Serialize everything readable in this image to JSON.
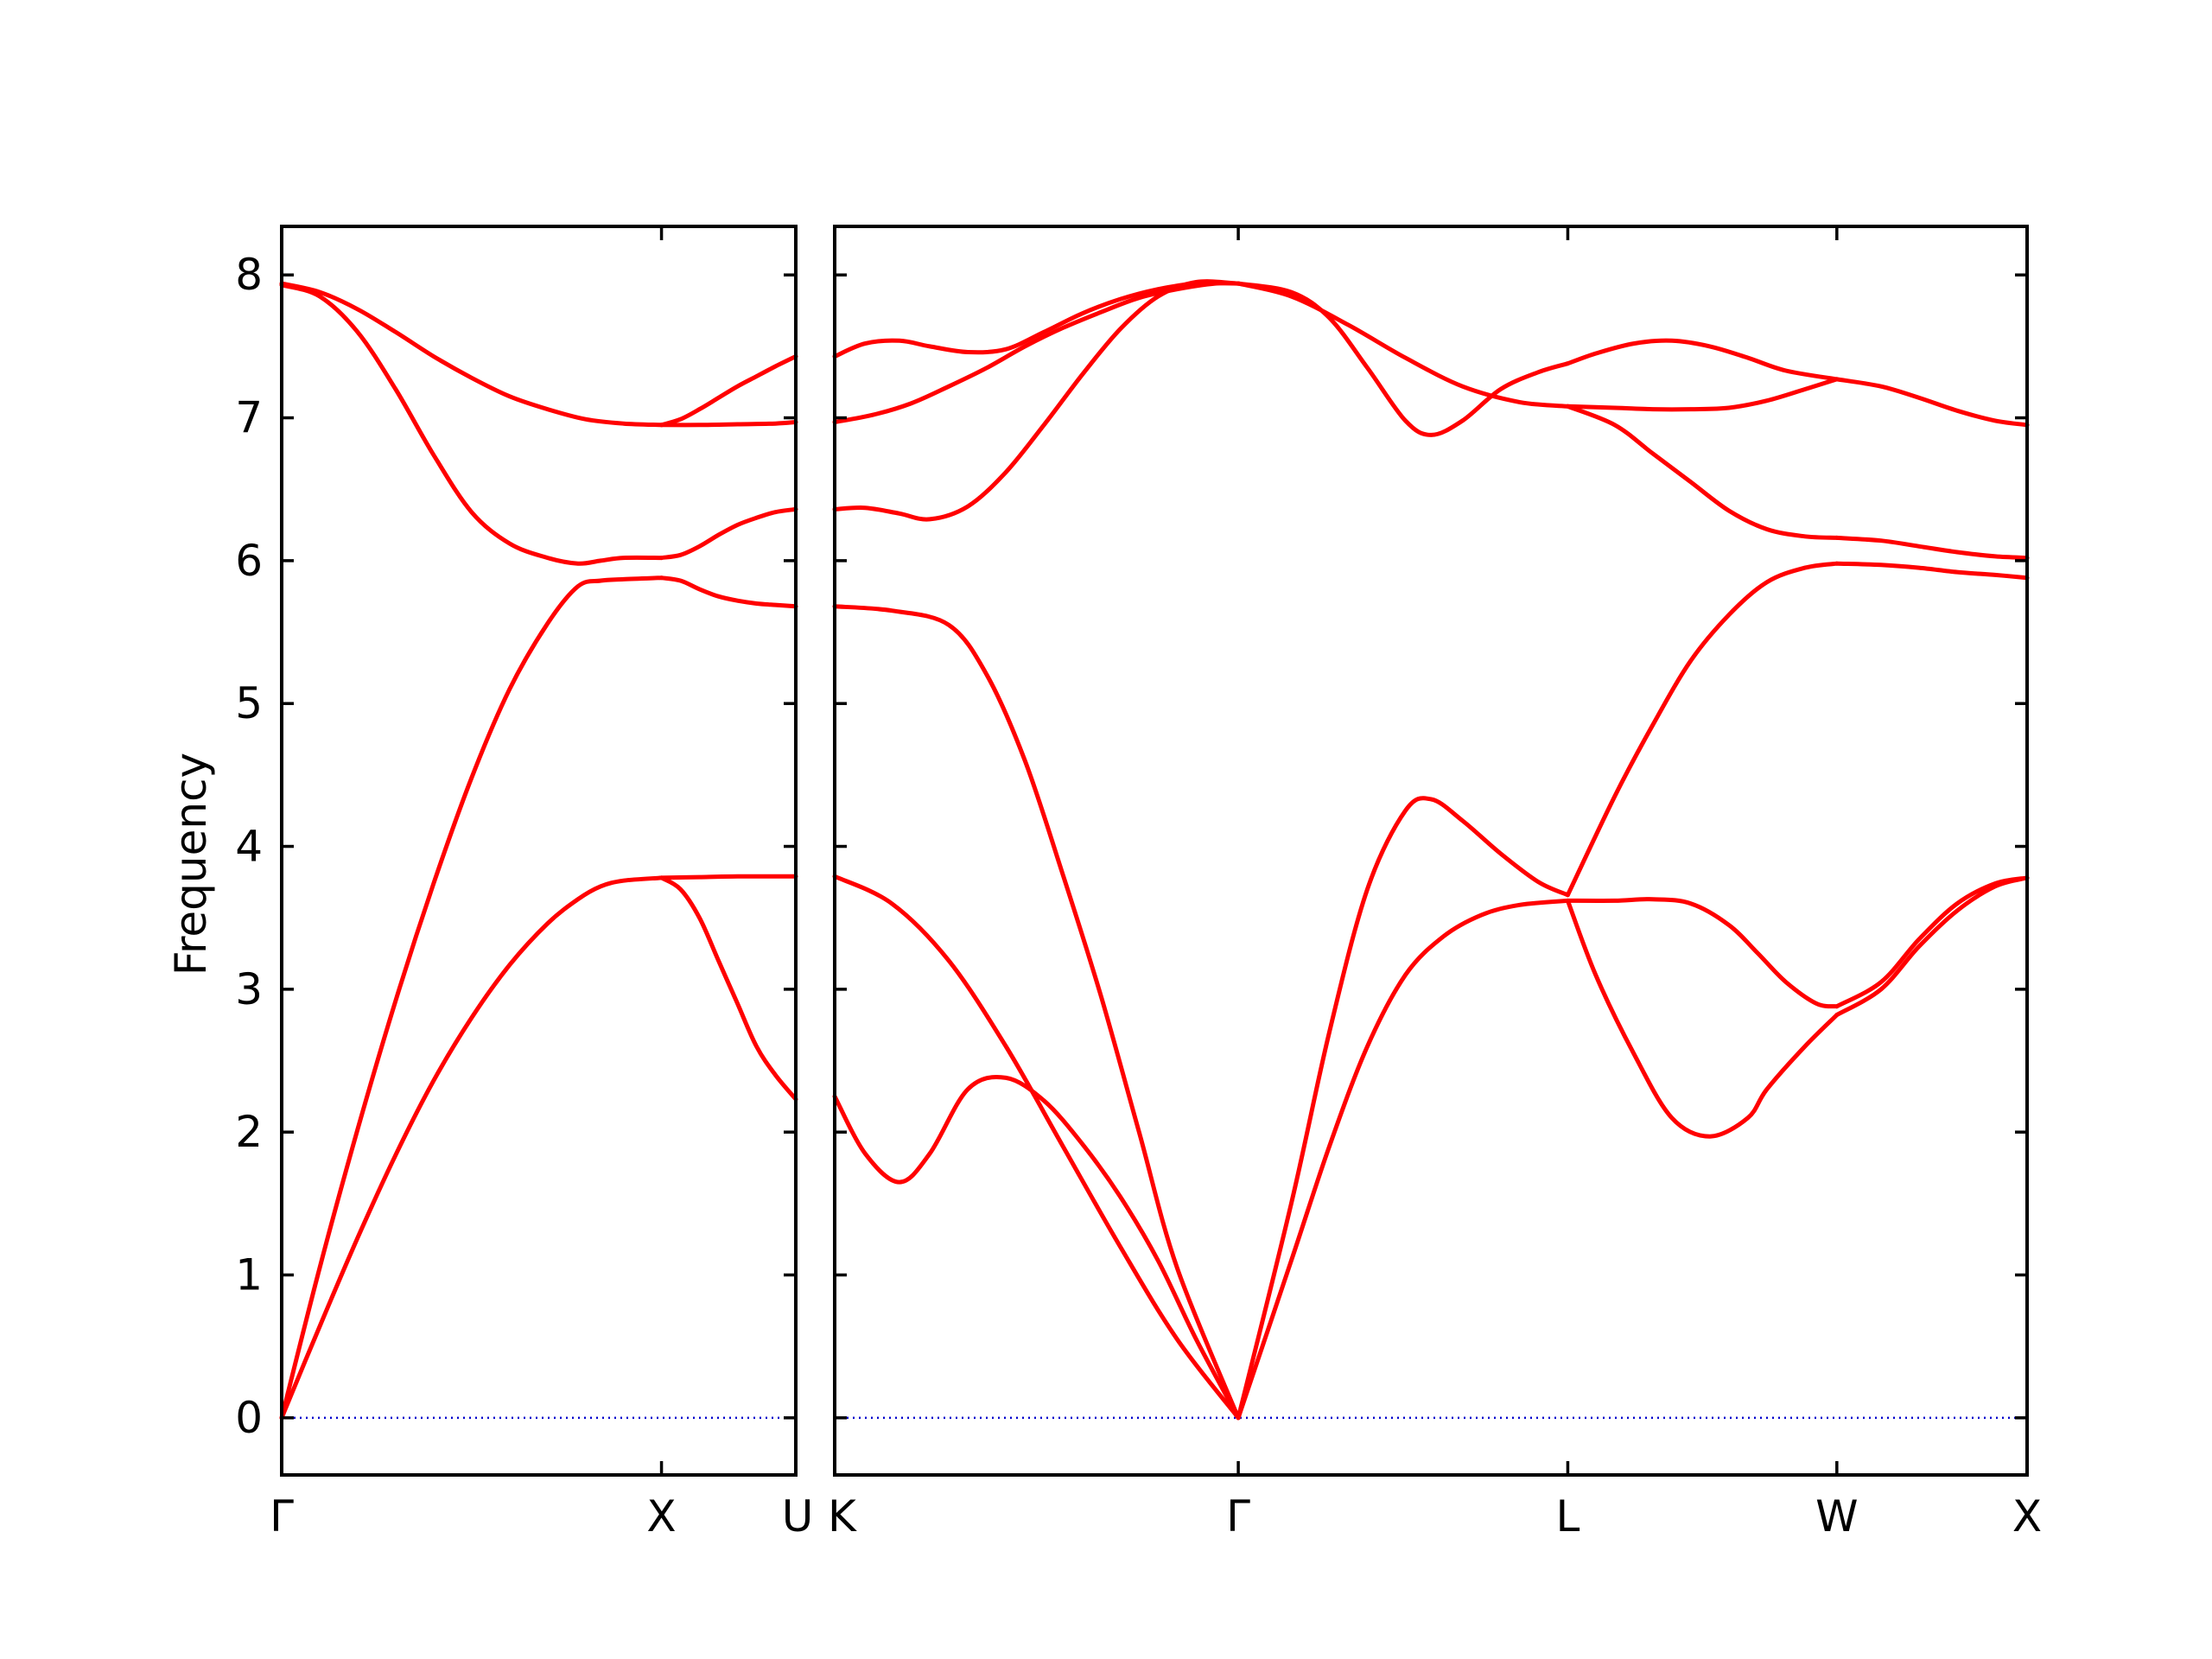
{
  "chart_data": {
    "type": "line",
    "title": "",
    "ylabel": "Frequency",
    "xlabel": "",
    "ylim": [
      -0.4,
      8.34
    ],
    "y_ticks": [
      0,
      1,
      2,
      3,
      4,
      5,
      6,
      7,
      8
    ],
    "grid": false,
    "legend": "none",
    "colors": {
      "bands": "#ff0000",
      "zero_line": "#0000cc",
      "axes": "#000000"
    },
    "panels": [
      {
        "x_ticks": [
          {
            "pos": 0.0,
            "label": "Γ"
          },
          {
            "pos": 1.0,
            "label": "X"
          },
          {
            "pos": 1.3536,
            "label": "U"
          }
        ],
        "xlim": [
          0,
          1.3536
        ],
        "series": [
          {
            "x": [
              0,
              0.1,
              0.2,
              0.3,
              0.4,
              0.5,
              0.6,
              0.7,
              0.78,
              0.84,
              0.9,
              1.0
            ],
            "values": [
              0,
              0.64,
              1.26,
              1.84,
              2.36,
              2.8,
              3.17,
              3.46,
              3.63,
              3.72,
              3.76,
              3.78
            ]
          },
          {
            "x": [
              0,
              0.1,
              0.2,
              0.3,
              0.4,
              0.5,
              0.6,
              0.7,
              0.78,
              0.84,
              0.9,
              1.0
            ],
            "values": [
              0,
              1.05,
              2.02,
              2.92,
              3.74,
              4.48,
              5.1,
              5.56,
              5.82,
              5.86,
              5.87,
              5.88
            ]
          },
          {
            "x": [
              0,
              0.1,
              0.2,
              0.3,
              0.4,
              0.5,
              0.6,
              0.7,
              0.78,
              0.84,
              0.9,
              1.0
            ],
            "values": [
              7.93,
              7.85,
              7.6,
              7.2,
              6.74,
              6.34,
              6.12,
              6.02,
              5.98,
              6.0,
              6.02,
              6.02
            ]
          },
          {
            "x": [
              0,
              0.1,
              0.2,
              0.3,
              0.4,
              0.5,
              0.6,
              0.7,
              0.8,
              0.9,
              1.0
            ],
            "values": [
              7.94,
              7.88,
              7.76,
              7.6,
              7.43,
              7.28,
              7.15,
              7.06,
              6.99,
              6.96,
              6.95
            ]
          },
          {
            "x": [
              1.0,
              1.05,
              1.1,
              1.15,
              1.2,
              1.25,
              1.3,
              1.3536
            ],
            "values": [
              3.78,
              3.7,
              3.5,
              3.2,
              2.9,
              2.6,
              2.4,
              2.23
            ]
          },
          {
            "x": [
              1.0,
              1.1,
              1.2,
              1.3,
              1.3536
            ],
            "values": [
              3.78,
              3.785,
              3.79,
              3.79,
              3.79
            ]
          },
          {
            "x": [
              1.0,
              1.05,
              1.1,
              1.15,
              1.2,
              1.25,
              1.3,
              1.3536
            ],
            "values": [
              5.88,
              5.86,
              5.8,
              5.75,
              5.72,
              5.7,
              5.69,
              5.68
            ]
          },
          {
            "x": [
              1.0,
              1.05,
              1.1,
              1.15,
              1.2,
              1.25,
              1.3,
              1.3536
            ],
            "values": [
              6.02,
              6.04,
              6.1,
              6.18,
              6.25,
              6.3,
              6.34,
              6.36
            ]
          },
          {
            "x": [
              1.0,
              1.1,
              1.2,
              1.3,
              1.3536
            ],
            "values": [
              6.95,
              6.95,
              6.955,
              6.96,
              6.97
            ]
          },
          {
            "x": [
              1.0,
              1.05,
              1.1,
              1.15,
              1.2,
              1.25,
              1.3,
              1.3536
            ],
            "values": [
              6.95,
              6.99,
              7.06,
              7.14,
              7.22,
              7.29,
              7.36,
              7.43
            ]
          }
        ]
      },
      {
        "x_ticks": [
          {
            "pos": 0.0,
            "label": "K"
          },
          {
            "pos": 1.0607,
            "label": "Γ"
          },
          {
            "pos": 1.9267,
            "label": "L"
          },
          {
            "pos": 2.6338,
            "label": "W"
          },
          {
            "pos": 3.1338,
            "label": "X"
          }
        ],
        "xlim": [
          0,
          3.1338
        ],
        "series": [
          {
            "x": [
              0.0,
              0.08,
              0.17,
              0.25,
              0.35,
              0.45,
              0.55,
              0.65,
              0.75,
              0.85,
              0.95,
              1.0607
            ],
            "values": [
              2.25,
              1.85,
              1.65,
              1.85,
              2.3,
              2.38,
              2.22,
              1.92,
              1.55,
              1.1,
              0.55,
              0.0
            ]
          },
          {
            "x": [
              0.0,
              0.15,
              0.3,
              0.45,
              0.6,
              0.75,
              0.9,
              1.0607
            ],
            "values": [
              3.79,
              3.6,
              3.2,
              2.6,
              1.9,
              1.2,
              0.55,
              0.0
            ]
          },
          {
            "x": [
              0.0,
              0.15,
              0.3,
              0.4,
              0.5,
              0.6,
              0.7,
              0.8,
              0.9,
              1.0607
            ],
            "values": [
              5.68,
              5.65,
              5.55,
              5.2,
              4.6,
              3.8,
              2.95,
              2.0,
              1.05,
              0.0
            ]
          },
          {
            "x": [
              0.0,
              0.08,
              0.17,
              0.25,
              0.35,
              0.45,
              0.55,
              0.65,
              0.75,
              0.85,
              0.95,
              1.0607
            ],
            "values": [
              6.36,
              6.37,
              6.33,
              6.29,
              6.38,
              6.62,
              6.95,
              7.3,
              7.62,
              7.85,
              7.95,
              7.94
            ]
          },
          {
            "x": [
              0.0,
              0.1,
              0.2,
              0.3,
              0.4,
              0.5,
              0.6,
              0.7,
              0.8,
              0.9,
              1.0,
              1.0607
            ],
            "values": [
              6.97,
              7.02,
              7.1,
              7.22,
              7.35,
              7.5,
              7.63,
              7.74,
              7.84,
              7.9,
              7.94,
              7.94
            ]
          },
          {
            "x": [
              0.0,
              0.08,
              0.17,
              0.25,
              0.35,
              0.45,
              0.55,
              0.65,
              0.75,
              0.85,
              0.95,
              1.0607
            ],
            "values": [
              7.43,
              7.52,
              7.54,
              7.5,
              7.46,
              7.48,
              7.6,
              7.73,
              7.83,
              7.9,
              7.94,
              7.94
            ]
          },
          {
            "x": [
              1.0607,
              1.2,
              1.3,
              1.4,
              1.5,
              1.6,
              1.7,
              1.8,
              1.9267
            ],
            "values": [
              0.0,
              1.1,
              1.9,
              2.6,
              3.1,
              3.37,
              3.52,
              3.59,
              3.62
            ]
          },
          {
            "x": [
              1.0607,
              1.2,
              1.3,
              1.4,
              1.5,
              1.5677,
              1.65,
              1.75,
              1.85,
              1.9267
            ],
            "values": [
              0.0,
              1.5,
              2.7,
              3.7,
              4.25,
              4.33,
              4.18,
              3.95,
              3.75,
              3.66
            ]
          },
          {
            "x": [
              1.0607,
              1.2,
              1.3,
              1.4,
              1.5,
              1.5677,
              1.65,
              1.75,
              1.85,
              1.9267
            ],
            "values": [
              7.94,
              7.88,
              7.7,
              7.35,
              6.98,
              6.88,
              6.98,
              7.2,
              7.32,
              7.38
            ]
          },
          {
            "x": [
              1.0607,
              1.2,
              1.35,
              1.5,
              1.65,
              1.8,
              1.9267
            ],
            "values": [
              7.94,
              7.85,
              7.65,
              7.42,
              7.22,
              7.11,
              7.08
            ]
          },
          {
            "x": [
              1.9267,
              2.05,
              2.15,
              2.25,
              2.35,
              2.4267,
              2.5,
              2.58,
              2.6338
            ],
            "values": [
              3.62,
              3.62,
              3.63,
              3.6,
              3.45,
              3.25,
              3.05,
              2.9,
              2.88
            ]
          },
          {
            "x": [
              1.9267,
              2.0,
              2.1,
              2.2,
              2.3,
              2.4,
              2.45,
              2.55,
              2.6338
            ],
            "values": [
              3.62,
              3.1,
              2.55,
              2.1,
              1.97,
              2.1,
              2.3,
              2.6,
              2.82
            ]
          },
          {
            "x": [
              1.9267,
              2.05,
              2.15,
              2.25,
              2.35,
              2.45,
              2.55,
              2.6338
            ],
            "values": [
              3.66,
              4.35,
              4.85,
              5.3,
              5.62,
              5.85,
              5.95,
              5.98
            ]
          },
          {
            "x": [
              1.9267,
              2.05,
              2.15,
              2.25,
              2.35,
              2.45,
              2.55,
              2.6338
            ],
            "values": [
              7.08,
              6.95,
              6.75,
              6.55,
              6.35,
              6.22,
              6.17,
              6.16
            ]
          },
          {
            "x": [
              1.9267,
              2.05,
              2.15,
              2.25,
              2.35,
              2.45,
              2.55,
              2.6338
            ],
            "values": [
              7.08,
              7.07,
              7.06,
              7.06,
              7.07,
              7.12,
              7.2,
              7.27
            ]
          },
          {
            "x": [
              1.9267,
              2.0,
              2.1,
              2.2,
              2.3,
              2.4,
              2.5,
              2.6338
            ],
            "values": [
              7.38,
              7.45,
              7.52,
              7.54,
              7.5,
              7.42,
              7.33,
              7.27
            ]
          },
          {
            "x": [
              2.6338,
              2.75,
              2.85,
              2.95,
              3.05,
              3.1338
            ],
            "values": [
              2.82,
              3.0,
              3.3,
              3.55,
              3.72,
              3.78
            ]
          },
          {
            "x": [
              2.6338,
              2.75,
              2.85,
              2.95,
              3.05,
              3.1338
            ],
            "values": [
              2.88,
              3.05,
              3.35,
              3.6,
              3.74,
              3.78
            ]
          },
          {
            "x": [
              2.6338,
              2.75,
              2.85,
              2.95,
              3.05,
              3.1338
            ],
            "values": [
              5.98,
              5.97,
              5.95,
              5.92,
              5.9,
              5.88
            ]
          },
          {
            "x": [
              2.6338,
              2.75,
              2.85,
              2.95,
              3.05,
              3.1338
            ],
            "values": [
              6.16,
              6.14,
              6.1,
              6.06,
              6.03,
              6.02
            ]
          },
          {
            "x": [
              2.6338,
              2.75,
              2.85,
              2.95,
              3.05,
              3.1338
            ],
            "values": [
              7.27,
              7.22,
              7.14,
              7.05,
              6.98,
              6.95
            ]
          }
        ]
      }
    ]
  }
}
